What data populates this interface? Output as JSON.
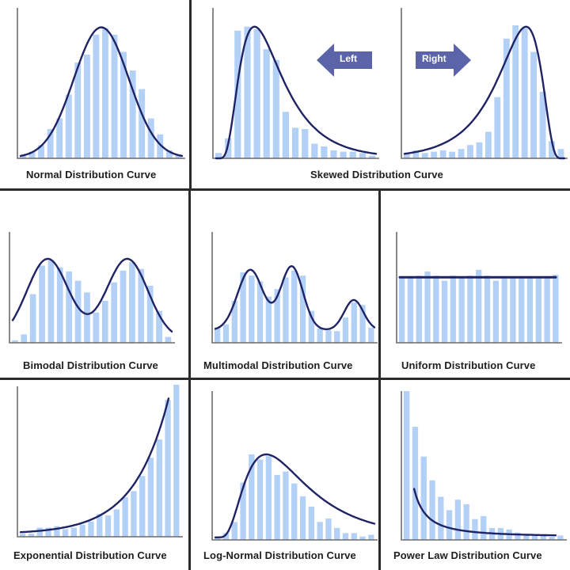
{
  "colors": {
    "bar": "#b3d0f7",
    "curve": "#1f2366",
    "axis": "#6b6b6b",
    "arrow": "#5b64a8",
    "grid": "#2b2b2b",
    "caption": "#1e1e1e"
  },
  "captions": {
    "normal": "Normal Distribution Curve",
    "skewed": "Skewed Distribution Curve",
    "bimodal": "Bimodal Distribution Curve",
    "multimodal": "Multimodal Distribution Curve",
    "uniform": "Uniform Distribution Curve",
    "exponential": "Exponential Distribution Curve",
    "lognormal": "Log-Normal Distribution Curve",
    "powerlaw": "Power Law Distribution Curve"
  },
  "arrows": {
    "left_label": "Left",
    "right_label": "Right"
  },
  "chart_data": [
    {
      "id": "normal",
      "type": "bar",
      "title": "Normal Distribution Curve",
      "bars": [
        0.02,
        0.05,
        0.1,
        0.22,
        0.3,
        0.48,
        0.72,
        0.78,
        0.93,
        0.98,
        0.93,
        0.8,
        0.66,
        0.52,
        0.3,
        0.18,
        0.06,
        0.03
      ],
      "curve": "normal",
      "xlabel": "",
      "ylabel": "",
      "ylim": [
        0,
        1
      ]
    },
    {
      "id": "skewed_left",
      "type": "bar",
      "title": "Skewed Distribution Curve (Left)",
      "bars": [
        0.04,
        0.15,
        0.96,
        0.99,
        0.97,
        0.82,
        0.74,
        0.35,
        0.23,
        0.22,
        0.11,
        0.09,
        0.06,
        0.05,
        0.05,
        0.04,
        0.02
      ],
      "curve": "skew_left"
    },
    {
      "id": "skewed_right",
      "type": "bar",
      "title": "Skewed Distribution Curve (Right)",
      "bars": [
        0.03,
        0.06,
        0.04,
        0.05,
        0.06,
        0.05,
        0.07,
        0.1,
        0.12,
        0.2,
        0.46,
        0.9,
        1.0,
        0.98,
        0.8,
        0.5,
        0.13,
        0.07
      ],
      "curve": "skew_right"
    },
    {
      "id": "bimodal",
      "type": "bar",
      "title": "Bimodal Distribution Curve",
      "bars": [
        0.03,
        0.1,
        0.58,
        0.92,
        0.98,
        0.9,
        0.85,
        0.74,
        0.6,
        0.36,
        0.5,
        0.72,
        0.86,
        0.96,
        0.88,
        0.68,
        0.38,
        0.07
      ],
      "curve": "bimodal"
    },
    {
      "id": "multimodal",
      "type": "bar",
      "title": "Multimodal Distribution Curve",
      "bars": [
        0.18,
        0.22,
        0.5,
        0.84,
        0.8,
        0.73,
        0.55,
        0.64,
        0.78,
        0.86,
        0.8,
        0.38,
        0.17,
        0.15,
        0.14,
        0.3,
        0.48,
        0.45,
        0.18
      ],
      "curve": "multimodal"
    },
    {
      "id": "uniform",
      "type": "bar",
      "title": "Uniform Distribution Curve",
      "bars": [
        0.78,
        0.78,
        0.8,
        0.85,
        0.8,
        0.74,
        0.8,
        0.78,
        0.8,
        0.87,
        0.8,
        0.74,
        0.78,
        0.78,
        0.78,
        0.78,
        0.78,
        0.78,
        0.81
      ],
      "curve": "uniform"
    },
    {
      "id": "exponential",
      "type": "bar",
      "title": "Exponential Distribution Curve",
      "bars": [
        0.02,
        0.02,
        0.06,
        0.06,
        0.07,
        0.05,
        0.06,
        0.08,
        0.1,
        0.15,
        0.14,
        0.18,
        0.26,
        0.3,
        0.4,
        0.52,
        0.64,
        0.9,
        1.0
      ],
      "curve": "exponential"
    },
    {
      "id": "lognormal",
      "type": "bar",
      "title": "Log-Normal Distribution Curve",
      "bars": [
        0.02,
        0.08,
        0.21,
        0.67,
        1.0,
        0.94,
        0.98,
        0.76,
        0.8,
        0.66,
        0.51,
        0.39,
        0.21,
        0.25,
        0.14,
        0.08,
        0.08,
        0.04,
        0.06
      ],
      "curve": "lognormal"
    },
    {
      "id": "powerlaw",
      "type": "bar",
      "title": "Power Law Distribution Curve",
      "bars": [
        1.0,
        0.76,
        0.56,
        0.4,
        0.29,
        0.2,
        0.27,
        0.24,
        0.14,
        0.16,
        0.08,
        0.08,
        0.07,
        0.05,
        0.04,
        0.04,
        0.03,
        0.02,
        0.03
      ],
      "curve": "powerlaw"
    }
  ]
}
